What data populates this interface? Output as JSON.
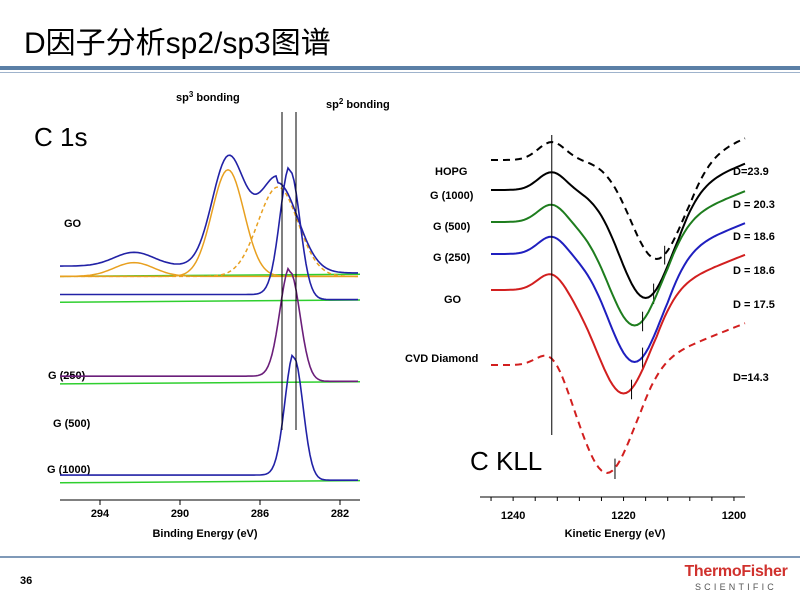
{
  "slide": {
    "title": "D因子分析sp2/sp3图谱",
    "page_number": "36",
    "logo_main": "ThermoFisher",
    "logo_sub": "SCIENTIFIC"
  },
  "colors": {
    "accent": "#5b7fa6",
    "logo_red": "#d0312d"
  },
  "chart_data": [
    {
      "type": "line",
      "title": "C 1s",
      "xlabel": "Binding Energy (eV)",
      "ylabel": "",
      "x_reversed": true,
      "xlim": [
        296,
        281
      ],
      "xticks": [
        294,
        290,
        286,
        282
      ],
      "annotations": {
        "sp3": "sp",
        "sp3_sup": "3",
        "sp3_rest": " bonding",
        "sp2": "sp",
        "sp2_sup": "2",
        "sp2_rest": " bonding"
      },
      "marker_lines_x": [
        284.9,
        284.2
      ],
      "series": [
        {
          "name": "GO",
          "color": "#2222a6",
          "offset": 0.52,
          "scale": 0.4,
          "peaks": [
            [
              292.3,
              0.08,
              1.0
            ],
            [
              287.6,
              0.62,
              0.8
            ],
            [
              285.1,
              0.52,
              1.0
            ]
          ]
        },
        {
          "name": "G (250)",
          "color": "#2222a6",
          "offset": 0.46,
          "scale": 0.3,
          "peaks": [
            [
              284.5,
              1.0,
              0.5
            ]
          ]
        },
        {
          "name": "G (500)",
          "color": "#6b1f7a",
          "offset": 0.27,
          "scale": 0.3,
          "peaks": [
            [
              284.5,
              0.85,
              0.5
            ]
          ]
        },
        {
          "name": "G (1000)",
          "color": "#2222a6",
          "offset": 0.04,
          "scale": 0.3,
          "peaks": [
            [
              284.3,
              0.95,
              0.45
            ]
          ]
        }
      ],
      "series_labels": [
        "GO",
        "G (250)",
        "G (500)",
        "G (1000)"
      ]
    },
    {
      "type": "line",
      "title": "C KLL",
      "xlabel": "Kinetic Energy (eV)",
      "ylabel": "",
      "x_reversed": true,
      "xlim": [
        1246,
        1198
      ],
      "xticks": [
        1240,
        1220,
        1200
      ],
      "marker_line_x": 1233,
      "series": [
        {
          "name": "HOPG",
          "color": "#000000",
          "dashed": true,
          "D_label": "D=23.9"
        },
        {
          "name": "G (1000)",
          "color": "#000000",
          "dashed": false,
          "D_label": "D = 20.3"
        },
        {
          "name": "G (500)",
          "color": "#1e7d1e",
          "dashed": false,
          "D_label": "D = 18.6"
        },
        {
          "name": "G (250)",
          "color": "#1f1fbf",
          "dashed": false,
          "D_label": "D = 18.6"
        },
        {
          "name": "GO",
          "color": "#d21f1f",
          "dashed": false,
          "D_label": "D = 17.5"
        },
        {
          "name": "CVD Diamond",
          "color": "#d21f1f",
          "dashed": true,
          "D_label": "D=14.3"
        }
      ]
    }
  ]
}
